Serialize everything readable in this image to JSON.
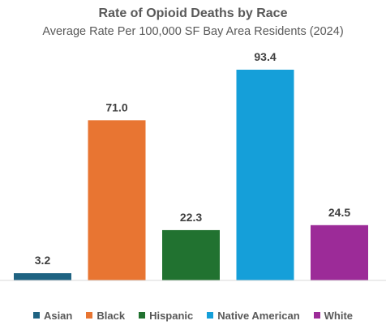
{
  "chart_data": {
    "type": "bar",
    "title": "Rate of Opioid Deaths by Race",
    "subtitle": "Average Rate Per 100,000 SF Bay Area Residents (2024)",
    "categories": [
      "Asian",
      "Black",
      "Hispanic",
      "Native American",
      "White"
    ],
    "values": [
      3.2,
      71.0,
      22.3,
      93.4,
      24.5
    ],
    "value_labels": [
      "3.2",
      "71.0",
      "22.3",
      "93.4",
      "24.5"
    ],
    "colors": [
      "#1f6382",
      "#e87532",
      "#217230",
      "#159fd9",
      "#9c2b98"
    ],
    "xlabel": "",
    "ylabel": "",
    "ylim": [
      0,
      100
    ],
    "grid": false,
    "legend_position": "bottom"
  }
}
